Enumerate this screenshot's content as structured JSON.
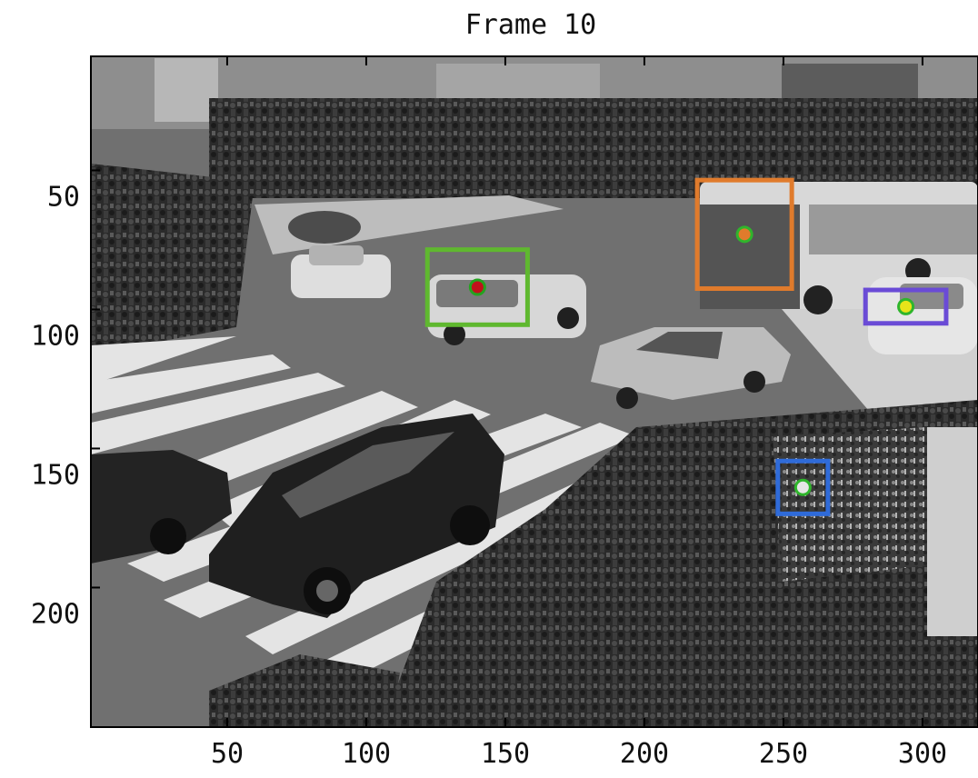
{
  "figure": {
    "title": "Frame 10",
    "x_ticks": [
      "50",
      "100",
      "150",
      "200",
      "250",
      "300"
    ],
    "y_ticks": [
      "50",
      "100",
      "150",
      "200"
    ]
  },
  "scene": {
    "description_colors": {
      "road": "#6b6b6b",
      "crosswalk": "#e6e6e6",
      "crowd": "#2a2a2a",
      "bus": "#d9d9d9",
      "car_white": "#d2d2d2",
      "car_dark": "#262626"
    }
  },
  "tracks": [
    {
      "id": "car-green",
      "box_color": "#5fb82f",
      "dot_fill": "#c0111b",
      "dot_ring": "#23a31f",
      "x": 140,
      "y": 92
    },
    {
      "id": "bus-orange",
      "box_color": "#e07b2c",
      "dot_fill": "#e07b2c",
      "dot_ring": "#2fb52c",
      "x": 236,
      "y": 73
    },
    {
      "id": "car-purple",
      "box_color": "#6a4bd6",
      "dot_fill": "#e8e41a",
      "dot_ring": "#2fb52c",
      "x": 294,
      "y": 99
    },
    {
      "id": "pedestrian-blue",
      "box_color": "#2f6bd9",
      "dot_fill": "#e6e6e6",
      "dot_ring": "#2fb52c",
      "x": 257,
      "y": 164
    }
  ]
}
